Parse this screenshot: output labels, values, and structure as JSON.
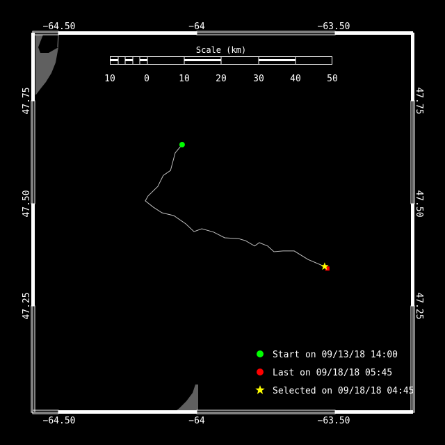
{
  "map": {
    "lon_ticks": [
      "−64.50",
      "−64",
      "−63.50"
    ],
    "lat_ticks": [
      "47.75",
      "47.50",
      "47.25"
    ],
    "lon_range": [
      -64.595,
      -63.22
    ],
    "lat_range": [
      47.08,
      48.01
    ],
    "colors": {
      "background": "#000000",
      "land": "#606060",
      "track": "#c0c0c0",
      "start": "#00ff00",
      "last": "#ff0000",
      "selected": "#ffff00"
    }
  },
  "scale_bar": {
    "title": "Scale (km)",
    "labels": [
      "10",
      "0",
      "10",
      "20",
      "30",
      "40",
      "50"
    ]
  },
  "legend": {
    "items": [
      {
        "icon": "green-dot",
        "label": "Start on 09/13/18 14:00"
      },
      {
        "icon": "red-dot",
        "label": "Last on 09/18/18 05:45"
      },
      {
        "icon": "yellow-star",
        "label": "Selected on 09/18/18 04:45"
      }
    ]
  },
  "chart_data": {
    "type": "line",
    "xlabel": "",
    "ylabel": "",
    "track_lon": [
      -64.053,
      -64.078,
      -64.095,
      -64.121,
      -64.141,
      -64.176,
      -64.186,
      -64.158,
      -64.126,
      -64.083,
      -64.04,
      -64.01,
      -63.982,
      -63.94,
      -63.899,
      -63.849,
      -63.824,
      -63.791,
      -63.774,
      -63.744,
      -63.721,
      -63.688,
      -63.648,
      -63.598,
      -63.538,
      -63.528
    ],
    "track_lat": [
      47.644,
      47.624,
      47.581,
      47.569,
      47.542,
      47.519,
      47.507,
      47.492,
      47.478,
      47.471,
      47.451,
      47.432,
      47.439,
      47.431,
      47.417,
      47.415,
      47.41,
      47.397,
      47.405,
      47.397,
      47.383,
      47.385,
      47.385,
      47.364,
      47.347,
      47.342
    ],
    "start": {
      "lon": -64.053,
      "lat": 47.644
    },
    "last": {
      "lon": -63.528,
      "lat": 47.342
    },
    "selected": {
      "lon": -63.538,
      "lat": 47.347
    }
  }
}
